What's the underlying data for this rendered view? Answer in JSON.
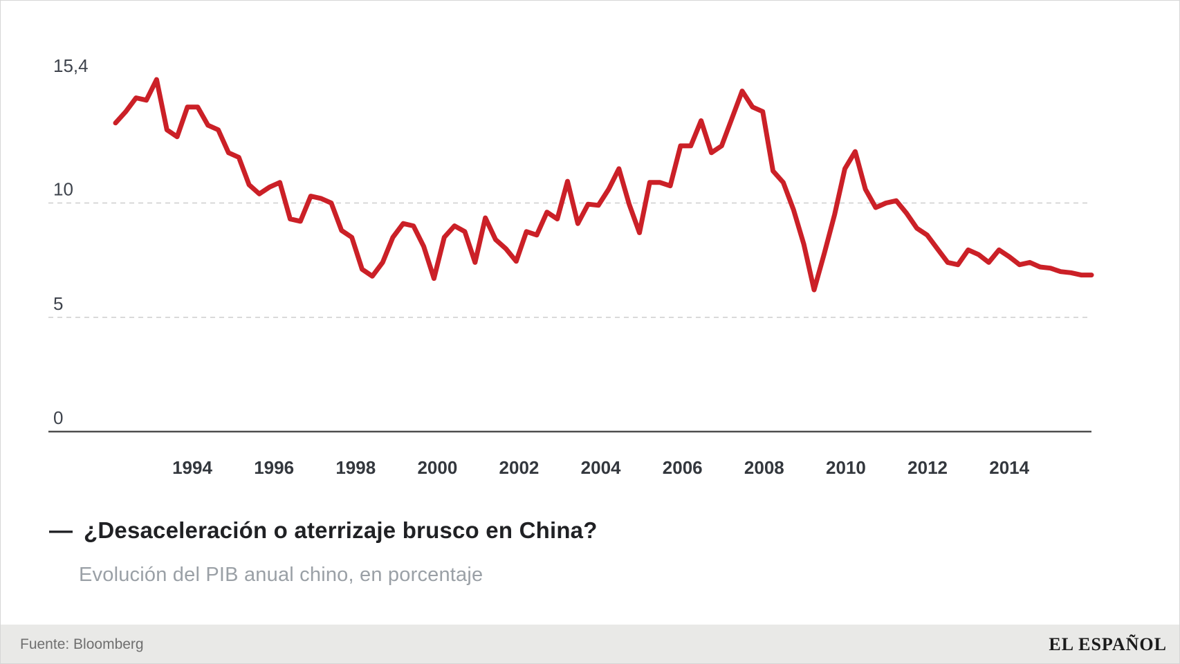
{
  "title": {
    "dash": "—",
    "text": "¿Desaceleración o aterrizaje brusco en China?"
  },
  "subtitle": "Evolución del PIB anual chino, en porcentaje",
  "footer": {
    "source": "Fuente: Bloomberg",
    "brand": "EL ESPAÑOL"
  },
  "colors": {
    "line": "#cb2027",
    "grid": "#cdcdcd",
    "axis": "#4d4d4d"
  },
  "chart_data": {
    "type": "line",
    "title": "¿Desaceleración o aterrizaje brusco en China?",
    "subtitle": "Evolución del PIB anual chino, en porcentaje",
    "source": "Fuente: Bloomberg",
    "frequency": "quarterly",
    "x_range": [
      "1992Q1",
      "2015Q4"
    ],
    "xlim": [
      1992,
      2016
    ],
    "ylim": [
      0,
      16
    ],
    "grid": "horizontal-dashed",
    "legend_position": "none",
    "x_tick_labels": [
      "1994",
      "1996",
      "1998",
      "2000",
      "2002",
      "2004",
      "2006",
      "2008",
      "2010",
      "2012",
      "2014"
    ],
    "x_tick_years": [
      1994,
      1996,
      1998,
      2000,
      2002,
      2004,
      2006,
      2008,
      2010,
      2012,
      2014
    ],
    "y_ticks": [
      {
        "label": "15,4",
        "value": 15.4,
        "grid": "none"
      },
      {
        "label": "10",
        "value": 10,
        "grid": "dashed"
      },
      {
        "label": "5",
        "value": 5,
        "grid": "dashed"
      },
      {
        "label": "0",
        "value": 0,
        "grid": "solid"
      }
    ],
    "series": [
      {
        "name": "PIB anual chino (%)",
        "color": "#cb2027",
        "start": "1992Q1",
        "values": [
          13.5,
          14.0,
          14.6,
          14.5,
          15.4,
          13.2,
          12.9,
          14.2,
          14.2,
          13.4,
          13.2,
          12.2,
          12.0,
          10.8,
          10.4,
          10.7,
          10.9,
          9.3,
          9.2,
          10.3,
          10.2,
          10.0,
          8.8,
          8.5,
          7.1,
          6.8,
          7.4,
          8.5,
          9.1,
          9.0,
          8.1,
          6.7,
          8.5,
          9.0,
          8.75,
          7.4,
          9.35,
          8.4,
          8.0,
          7.45,
          8.75,
          8.6,
          9.6,
          9.3,
          10.95,
          9.1,
          9.95,
          9.9,
          10.6,
          11.5,
          9.95,
          8.7,
          10.9,
          10.9,
          10.75,
          12.5,
          12.5,
          13.6,
          12.2,
          12.5,
          13.7,
          14.9,
          14.2,
          14.0,
          11.4,
          10.9,
          9.7,
          8.2,
          6.2,
          7.8,
          9.5,
          11.5,
          12.25,
          10.6,
          9.8,
          10.0,
          10.1,
          9.55,
          8.9,
          8.6,
          8.0,
          7.4,
          7.3,
          7.95,
          7.75,
          7.4,
          7.95,
          7.65,
          7.3,
          7.4,
          7.2,
          7.15,
          7.0,
          6.95,
          6.85,
          6.85
        ]
      }
    ]
  }
}
